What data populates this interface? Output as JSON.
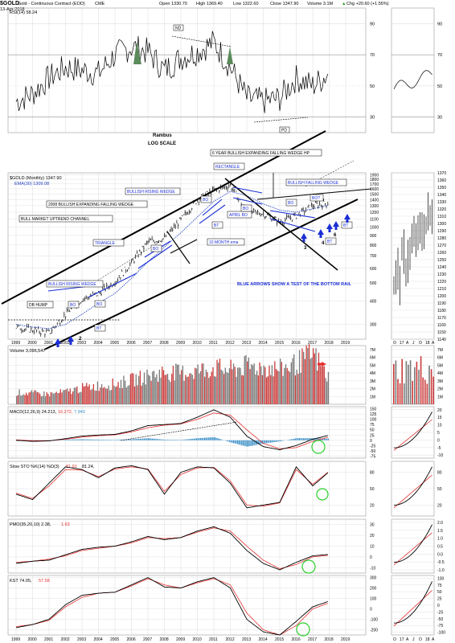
{
  "header": {
    "symbol": "$GOLD",
    "description": "Gold - Continuous Contract (EOD)",
    "exchange": "CME",
    "date": "13-Apr-2018",
    "open": "Open 1330.70",
    "high": "High 1369.40",
    "low": "Low 1322.60",
    "close": "Close 1347.90",
    "volume": "Volume 3.1M",
    "change": "Chg +20.60 (+1.55%)",
    "change_arrow": "▲"
  },
  "legends": {
    "rsi": "RSI(14) 58.24",
    "main_symbol": "$GOLD (Monthly) 1347.90",
    "main_ema": "EMA(30) 1309.08",
    "volume": "Volume 3,096,547",
    "macd_prefix": "MACD(12,26,9) 24.213,",
    "macd_signal": "16.272,",
    "macd_hist": "7.940",
    "sto_prefix": "Slow STO %K(14) %D(3)",
    "sto_signal": "81.91",
    "sto_k": "81.24,",
    "pmo_prefix": "PMO(35,20,10) 2.38,",
    "pmo_signal": "1.63",
    "kst_prefix": "KST 74.05,",
    "kst_signal": "57.58"
  },
  "annotations": {
    "rambus": "Rambus",
    "log_scale": "LOG SCALE",
    "nd": "ND",
    "pd": "PD",
    "rectangle": "RECTANGLE",
    "wedge_hp": "6 YEAR BULLISH EXPANDING FALLING WEDGE HP",
    "bullish_falling_wedge": "BULLISH FALLING WEDGE",
    "bullish_rising_wedge_top": "BULLISH RISING WEDGE",
    "wedge_2008": "2008 BULLISH EXPANDING FALLING WEDGE",
    "uptrend_channel": "BULL MARKET UPTREND CHANNEL",
    "triangle": "TRIANGLE",
    "db_hump": "DB HUMP",
    "bullish_rising_wedge_bottom": "BULLISH RISING WEDGE",
    "ten_month_ema": "10 MONTH ema",
    "april_bo": "APRIL BO",
    "blue_arrows_note": "BLUE ARROWS SHOW A TEST OF THE BOTTOM RAIL",
    "bo": "BO",
    "bo_q": "BO?",
    "bt": "BT",
    "num_2": "2",
    "num_3": "3",
    "num_4": "4",
    "num_6": "6"
  },
  "axes": {
    "years": [
      "1999",
      "2000",
      "2001",
      "2002",
      "2003",
      "2004",
      "2005",
      "2006",
      "2007",
      "2008",
      "2009",
      "2010",
      "2011",
      "2012",
      "2013",
      "2014",
      "2015",
      "2016",
      "2017",
      "2018",
      "2019"
    ],
    "zoom_months": [
      "O",
      "17",
      "A",
      "J",
      "O",
      "18",
      "A"
    ],
    "rsi_ticks": [
      "90",
      "70",
      "50",
      "30"
    ],
    "main_left_ticks": [
      "1900",
      "1800",
      "1700",
      "1600",
      "1500",
      "1400",
      "1300",
      "1200",
      "1100",
      "1000",
      "900",
      "800",
      "700",
      "600",
      "500",
      "400",
      "300"
    ],
    "zoom_price_ticks": [
      "1370",
      "1360",
      "1350",
      "1340",
      "1330",
      "1320",
      "1310",
      "1300",
      "1290",
      "1280",
      "1270",
      "1260",
      "1250",
      "1240",
      "1230",
      "1220",
      "1210",
      "1200",
      "1190",
      "1180",
      "1170",
      "1160",
      "1150",
      "1140"
    ],
    "volume_ticks": [
      "7M",
      "6M",
      "5M",
      "4M",
      "3M",
      "2M",
      "1M"
    ],
    "macd_ticks": [
      "150",
      "125",
      "100",
      "75",
      "50",
      "25",
      "0",
      "-25",
      "-50",
      "-75"
    ],
    "macd_zoom_ticks": [
      "20",
      "15",
      "10",
      "5",
      "0",
      "-5",
      "-10"
    ],
    "sto_ticks": [
      "80",
      "50",
      "20"
    ],
    "pmo_ticks": [
      "30",
      "20",
      "10",
      "0",
      "-10"
    ],
    "pmo_zoom_ticks": [
      "2.0",
      "1.5",
      "1.0",
      "0.5",
      "0.0",
      "-0.5",
      "-1.0"
    ],
    "kst_ticks": [
      "300",
      "200",
      "100",
      "0",
      "-100",
      "-200"
    ],
    "kst_zoom_ticks": [
      "100",
      "75",
      "50",
      "25",
      "0",
      "-25",
      "-50",
      "-75",
      "-100"
    ]
  },
  "colors": {
    "price_bar": "#000000",
    "ema": "#1e3fbf",
    "annotation_blue": "#1a2fd6",
    "signal_red": "#e53030",
    "volume_up": "#cc3b3b",
    "volume_down": "#7a7a7a",
    "histogram": "#3a8fc8",
    "nd_fill": "#5b8a5b",
    "circle_green": "#2ad12a",
    "grid": "#d9d9d9"
  },
  "chart_data": [
    {
      "type": "line",
      "panel": "RSI(14)",
      "x": [
        1999,
        2000,
        2001,
        2002,
        2003,
        2004,
        2005,
        2006,
        2007,
        2008,
        2009,
        2010,
        2011,
        2012,
        2013,
        2014,
        2015,
        2016,
        2017,
        2018
      ],
      "series": [
        {
          "name": "RSI(14)",
          "values": [
            40,
            45,
            55,
            62,
            60,
            58,
            70,
            75,
            72,
            60,
            68,
            72,
            78,
            62,
            42,
            40,
            42,
            55,
            50,
            58.24
          ]
        }
      ],
      "ylim": [
        20,
        100
      ]
    },
    {
      "type": "line",
      "panel": "$GOLD (Monthly)",
      "x": [
        1999,
        2000,
        2001,
        2002,
        2003,
        2004,
        2005,
        2006,
        2007,
        2008,
        2009,
        2010,
        2011,
        2012,
        2013,
        2014,
        2015,
        2016,
        2017,
        2018
      ],
      "series": [
        {
          "name": "$GOLD (Monthly)",
          "values": [
            290,
            280,
            270,
            340,
            410,
            440,
            510,
            640,
            830,
            870,
            1090,
            1400,
            1570,
            1670,
            1200,
            1180,
            1060,
            1150,
            1300,
            1347.9
          ]
        },
        {
          "name": "EMA(30)",
          "values": [
            300,
            290,
            285,
            300,
            340,
            390,
            440,
            530,
            650,
            780,
            930,
            1130,
            1370,
            1550,
            1470,
            1330,
            1230,
            1200,
            1250,
            1309.08
          ]
        }
      ],
      "ylim": [
        250,
        1950
      ],
      "scale": "log"
    },
    {
      "type": "bar",
      "panel": "Volume",
      "x": [
        1999,
        2000,
        2001,
        2002,
        2003,
        2004,
        2005,
        2006,
        2007,
        2008,
        2009,
        2010,
        2011,
        2012,
        2013,
        2014,
        2015,
        2016,
        2017,
        2018
      ],
      "values": [
        1.5,
        1.4,
        1.3,
        1.6,
        2.1,
        2.4,
        2.6,
        3.1,
        3.6,
        4.1,
        4.0,
        4.3,
        4.6,
        4.4,
        4.9,
        4.7,
        4.5,
        5.2,
        6.4,
        3.1
      ],
      "ylabel": "M",
      "ylim": [
        0,
        7.5
      ]
    },
    {
      "type": "line",
      "panel": "MACD(12,26,9)",
      "x": [
        1999,
        2000,
        2001,
        2002,
        2003,
        2004,
        2005,
        2006,
        2007,
        2008,
        2009,
        2010,
        2011,
        2012,
        2013,
        2014,
        2015,
        2016,
        2017,
        2018
      ],
      "series": [
        {
          "name": "MACD",
          "values": [
            0,
            -5,
            -3,
            8,
            20,
            25,
            28,
            45,
            70,
            75,
            80,
            110,
            145,
            110,
            20,
            -30,
            -45,
            -25,
            5,
            24.213
          ]
        },
        {
          "name": "Signal",
          "values": [
            2,
            -2,
            -2,
            5,
            15,
            22,
            26,
            40,
            60,
            72,
            78,
            100,
            130,
            120,
            50,
            -15,
            -40,
            -35,
            -5,
            16.272
          ]
        }
      ],
      "ylim": [
        -85,
        160
      ]
    },
    {
      "type": "line",
      "panel": "Slow STO %K(14) %D(3)",
      "x": [
        1999,
        2000,
        2001,
        2002,
        2003,
        2004,
        2005,
        2006,
        2007,
        2008,
        2009,
        2010,
        2011,
        2012,
        2013,
        2014,
        2015,
        2016,
        2017,
        2018
      ],
      "series": [
        {
          "name": "%K",
          "values": [
            40,
            30,
            60,
            90,
            85,
            70,
            88,
            92,
            85,
            40,
            80,
            90,
            88,
            60,
            15,
            20,
            25,
            90,
            55,
            81.24
          ]
        },
        {
          "name": "%D",
          "values": [
            42,
            32,
            55,
            85,
            84,
            72,
            86,
            90,
            86,
            45,
            76,
            88,
            89,
            64,
            20,
            18,
            24,
            85,
            58,
            81.91
          ]
        }
      ],
      "ylim": [
        0,
        100
      ]
    },
    {
      "type": "line",
      "panel": "PMO(35,20,10)",
      "x": [
        1999,
        2000,
        2001,
        2002,
        2003,
        2004,
        2005,
        2006,
        2007,
        2008,
        2009,
        2010,
        2011,
        2012,
        2013,
        2014,
        2015,
        2016,
        2017,
        2018
      ],
      "series": [
        {
          "name": "PMO",
          "values": [
            -6,
            -4,
            -3,
            2,
            7,
            9,
            10,
            14,
            19,
            16,
            18,
            24,
            28,
            22,
            6,
            -6,
            -12,
            -5,
            1,
            2.38
          ]
        },
        {
          "name": "Signal",
          "values": [
            -5,
            -4,
            -2,
            1,
            6,
            8,
            10,
            13,
            18,
            17,
            18,
            23,
            27,
            24,
            10,
            -3,
            -11,
            -7,
            0,
            1.63
          ]
        }
      ],
      "ylim": [
        -15,
        35
      ]
    },
    {
      "type": "line",
      "panel": "KST",
      "x": [
        1999,
        2000,
        2001,
        2002,
        2003,
        2004,
        2005,
        2006,
        2007,
        2008,
        2009,
        2010,
        2011,
        2012,
        2013,
        2014,
        2015,
        2016,
        2017,
        2018
      ],
      "series": [
        {
          "name": "KST",
          "values": [
            -180,
            -150,
            -100,
            40,
            130,
            150,
            160,
            230,
            300,
            210,
            200,
            260,
            300,
            200,
            -100,
            -220,
            -250,
            -120,
            20,
            74.05
          ]
        },
        {
          "name": "Signal",
          "values": [
            -170,
            -150,
            -110,
            20,
            110,
            150,
            160,
            220,
            290,
            230,
            200,
            250,
            290,
            230,
            -40,
            -200,
            -250,
            -160,
            0,
            57.58
          ]
        }
      ],
      "ylim": [
        -250,
        320
      ]
    }
  ]
}
